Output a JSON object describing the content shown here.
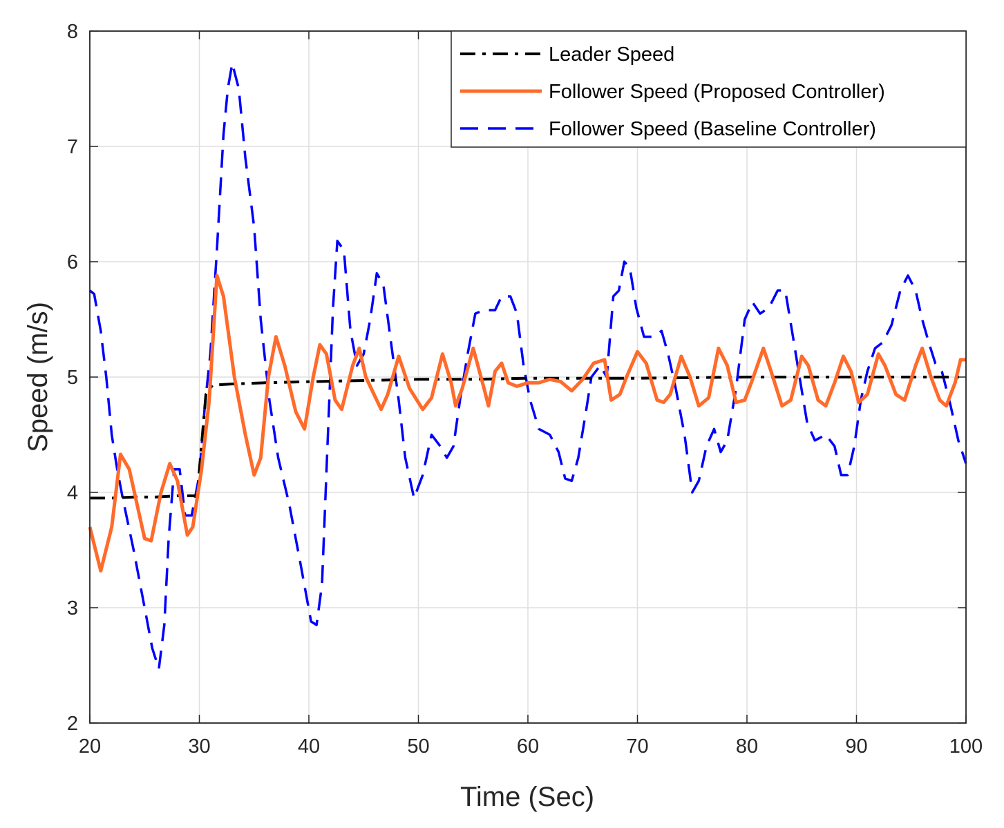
{
  "chart_data": {
    "type": "line",
    "xlabel": "Time (Sec)",
    "ylabel": "Speed (m/s)",
    "xlim": [
      20,
      100
    ],
    "ylim": [
      2,
      8
    ],
    "xticks": [
      20,
      30,
      40,
      50,
      60,
      70,
      80,
      90,
      100
    ],
    "yticks": [
      2,
      3,
      4,
      5,
      6,
      7,
      8
    ],
    "grid": true,
    "legend_position": "top-right",
    "series": [
      {
        "name": "Leader Speed",
        "color": "#000000",
        "style": "dash-dot",
        "points": [
          [
            20,
            3.95
          ],
          [
            22,
            3.95
          ],
          [
            24,
            3.96
          ],
          [
            26,
            3.96
          ],
          [
            28,
            3.97
          ],
          [
            29.8,
            3.97
          ],
          [
            30.6,
            4.85
          ],
          [
            31.2,
            4.93
          ],
          [
            33,
            4.94
          ],
          [
            36,
            4.95
          ],
          [
            40,
            4.96
          ],
          [
            45,
            4.97
          ],
          [
            50,
            4.98
          ],
          [
            55,
            4.98
          ],
          [
            60,
            4.99
          ],
          [
            70,
            4.99
          ],
          [
            80,
            5.0
          ],
          [
            90,
            5.0
          ],
          [
            100,
            5.0
          ]
        ]
      },
      {
        "name": "Follower Speed (Proposed Controller)",
        "color": "#FF6B2B",
        "style": "solid",
        "points": [
          [
            20,
            3.7
          ],
          [
            21,
            3.32
          ],
          [
            22,
            3.7
          ],
          [
            22.8,
            4.33
          ],
          [
            23.6,
            4.2
          ],
          [
            25,
            3.6
          ],
          [
            25.6,
            3.58
          ],
          [
            26.5,
            4.0
          ],
          [
            27.3,
            4.25
          ],
          [
            28,
            4.1
          ],
          [
            28.9,
            3.63
          ],
          [
            29.4,
            3.7
          ],
          [
            30.2,
            4.2
          ],
          [
            30.9,
            4.8
          ],
          [
            31.6,
            5.88
          ],
          [
            32.2,
            5.7
          ],
          [
            33.2,
            5.0
          ],
          [
            34.2,
            4.5
          ],
          [
            35,
            4.15
          ],
          [
            35.6,
            4.3
          ],
          [
            36.3,
            5.0
          ],
          [
            37,
            5.35
          ],
          [
            37.8,
            5.1
          ],
          [
            38.8,
            4.7
          ],
          [
            39.6,
            4.55
          ],
          [
            40.4,
            5.0
          ],
          [
            41,
            5.28
          ],
          [
            41.6,
            5.2
          ],
          [
            42.4,
            4.8
          ],
          [
            43,
            4.72
          ],
          [
            44,
            5.1
          ],
          [
            44.6,
            5.25
          ],
          [
            45.2,
            5.0
          ],
          [
            46.6,
            4.72
          ],
          [
            47.2,
            4.85
          ],
          [
            48.2,
            5.18
          ],
          [
            49.2,
            4.9
          ],
          [
            50.4,
            4.72
          ],
          [
            51.2,
            4.82
          ],
          [
            52.2,
            5.2
          ],
          [
            53,
            4.95
          ],
          [
            53.4,
            4.75
          ],
          [
            54,
            4.9
          ],
          [
            55,
            5.25
          ],
          [
            56,
            4.9
          ],
          [
            56.4,
            4.75
          ],
          [
            57,
            5.05
          ],
          [
            57.6,
            5.12
          ],
          [
            58.2,
            4.95
          ],
          [
            59,
            4.92
          ],
          [
            60,
            4.95
          ],
          [
            61,
            4.95
          ],
          [
            62,
            4.98
          ],
          [
            63,
            4.96
          ],
          [
            64,
            4.88
          ],
          [
            65,
            4.98
          ],
          [
            66,
            5.12
          ],
          [
            67,
            5.15
          ],
          [
            67.6,
            4.8
          ],
          [
            68.4,
            4.85
          ],
          [
            69,
            5.0
          ],
          [
            70,
            5.22
          ],
          [
            70.8,
            5.12
          ],
          [
            71.8,
            4.8
          ],
          [
            72.4,
            4.78
          ],
          [
            73,
            4.85
          ],
          [
            74,
            5.18
          ],
          [
            74.8,
            5.0
          ],
          [
            75.6,
            4.75
          ],
          [
            76.5,
            4.82
          ],
          [
            77.4,
            5.25
          ],
          [
            78.2,
            5.1
          ],
          [
            79,
            4.78
          ],
          [
            79.8,
            4.8
          ],
          [
            80.4,
            4.95
          ],
          [
            81.5,
            5.25
          ],
          [
            82.2,
            5.05
          ],
          [
            83.2,
            4.75
          ],
          [
            84,
            4.8
          ],
          [
            85,
            5.18
          ],
          [
            85.6,
            5.1
          ],
          [
            86.5,
            4.8
          ],
          [
            87.2,
            4.75
          ],
          [
            88,
            4.95
          ],
          [
            88.8,
            5.18
          ],
          [
            89.5,
            5.05
          ],
          [
            90.2,
            4.78
          ],
          [
            91,
            4.85
          ],
          [
            92,
            5.2
          ],
          [
            92.6,
            5.1
          ],
          [
            93.6,
            4.85
          ],
          [
            94.4,
            4.8
          ],
          [
            95.4,
            5.1
          ],
          [
            96,
            5.25
          ],
          [
            96.8,
            5.0
          ],
          [
            97.6,
            4.8
          ],
          [
            98.2,
            4.75
          ],
          [
            99,
            4.95
          ],
          [
            99.5,
            5.15
          ],
          [
            100,
            5.15
          ]
        ]
      },
      {
        "name": "Follower Speed (Baseline Controller)",
        "color": "#0000FF",
        "style": "dashed",
        "points": [
          [
            20,
            5.75
          ],
          [
            20.4,
            5.72
          ],
          [
            21,
            5.4
          ],
          [
            21.5,
            5.0
          ],
          [
            22,
            4.5
          ],
          [
            22.5,
            4.2
          ],
          [
            23,
            3.95
          ],
          [
            24,
            3.5
          ],
          [
            25,
            3.0
          ],
          [
            25.7,
            2.65
          ],
          [
            26.3,
            2.47
          ],
          [
            26.8,
            2.85
          ],
          [
            27.2,
            3.6
          ],
          [
            27.7,
            4.2
          ],
          [
            28.2,
            4.2
          ],
          [
            28.7,
            3.8
          ],
          [
            29.3,
            3.8
          ],
          [
            30,
            4.15
          ],
          [
            30.5,
            4.75
          ],
          [
            31,
            5.2
          ],
          [
            31.6,
            6.1
          ],
          [
            32.2,
            7.1
          ],
          [
            32.6,
            7.5
          ],
          [
            33,
            7.72
          ],
          [
            33.6,
            7.5
          ],
          [
            34.2,
            6.9
          ],
          [
            35,
            6.3
          ],
          [
            35.6,
            5.5
          ],
          [
            36.4,
            4.8
          ],
          [
            37.2,
            4.3
          ],
          [
            38.2,
            3.9
          ],
          [
            39.2,
            3.4
          ],
          [
            40.2,
            2.88
          ],
          [
            40.7,
            2.85
          ],
          [
            41.2,
            3.2
          ],
          [
            41.7,
            4.4
          ],
          [
            42.2,
            5.6
          ],
          [
            42.6,
            6.18
          ],
          [
            43.2,
            6.1
          ],
          [
            43.8,
            5.4
          ],
          [
            44.4,
            5.1
          ],
          [
            45,
            5.2
          ],
          [
            45.6,
            5.5
          ],
          [
            46.2,
            5.9
          ],
          [
            46.8,
            5.8
          ],
          [
            47.5,
            5.3
          ],
          [
            48.2,
            4.8
          ],
          [
            48.8,
            4.3
          ],
          [
            49.6,
            3.95
          ],
          [
            50.4,
            4.15
          ],
          [
            51.2,
            4.5
          ],
          [
            52,
            4.4
          ],
          [
            52.6,
            4.3
          ],
          [
            53.2,
            4.4
          ],
          [
            53.8,
            4.8
          ],
          [
            54.5,
            5.2
          ],
          [
            55.2,
            5.55
          ],
          [
            56,
            5.58
          ],
          [
            57,
            5.58
          ],
          [
            57.6,
            5.7
          ],
          [
            58.4,
            5.7
          ],
          [
            59,
            5.55
          ],
          [
            59.6,
            5.1
          ],
          [
            60.2,
            4.8
          ],
          [
            61,
            4.55
          ],
          [
            62,
            4.5
          ],
          [
            62.8,
            4.35
          ],
          [
            63.4,
            4.12
          ],
          [
            64,
            4.1
          ],
          [
            64.6,
            4.3
          ],
          [
            65.3,
            4.7
          ],
          [
            65.8,
            5.0
          ],
          [
            66.6,
            5.1
          ],
          [
            67.2,
            5.0
          ],
          [
            67.8,
            5.7
          ],
          [
            68.3,
            5.75
          ],
          [
            68.8,
            6.0
          ],
          [
            69.3,
            5.95
          ],
          [
            69.9,
            5.6
          ],
          [
            70.6,
            5.35
          ],
          [
            71.4,
            5.35
          ],
          [
            72.2,
            5.4
          ],
          [
            72.8,
            5.2
          ],
          [
            73.5,
            4.9
          ],
          [
            74.3,
            4.5
          ],
          [
            75,
            4.0
          ],
          [
            75.6,
            4.1
          ],
          [
            76.3,
            4.4
          ],
          [
            77,
            4.55
          ],
          [
            77.6,
            4.35
          ],
          [
            78.2,
            4.45
          ],
          [
            79,
            4.9
          ],
          [
            79.8,
            5.5
          ],
          [
            80.5,
            5.65
          ],
          [
            81.2,
            5.55
          ],
          [
            82,
            5.6
          ],
          [
            82.8,
            5.75
          ],
          [
            83.5,
            5.75
          ],
          [
            84.2,
            5.35
          ],
          [
            84.8,
            5.0
          ],
          [
            85.5,
            4.6
          ],
          [
            86.2,
            4.45
          ],
          [
            87.2,
            4.5
          ],
          [
            88,
            4.4
          ],
          [
            88.6,
            4.15
          ],
          [
            89.2,
            4.15
          ],
          [
            89.8,
            4.4
          ],
          [
            90.4,
            4.8
          ],
          [
            91,
            5.05
          ],
          [
            91.7,
            5.25
          ],
          [
            92.4,
            5.3
          ],
          [
            93.2,
            5.45
          ],
          [
            94,
            5.75
          ],
          [
            94.7,
            5.88
          ],
          [
            95.4,
            5.75
          ],
          [
            96,
            5.5
          ],
          [
            96.6,
            5.3
          ],
          [
            97.2,
            5.12
          ],
          [
            97.8,
            5.05
          ],
          [
            98.6,
            4.75
          ],
          [
            99.3,
            4.45
          ],
          [
            100,
            4.25
          ]
        ]
      }
    ]
  }
}
